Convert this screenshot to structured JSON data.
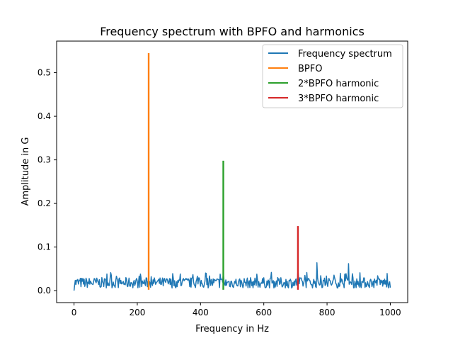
{
  "chart_data": {
    "type": "line",
    "title": "Frequency spectrum with BPFO and harmonics",
    "xlabel": "Frequency in Hz",
    "ylabel": "Amplitude in G",
    "xlim": [
      -55,
      1055
    ],
    "ylim": [
      -0.0275,
      0.5725
    ],
    "xticks": [
      0,
      200,
      400,
      600,
      800,
      1000
    ],
    "xtick_labels": [
      "0",
      "200",
      "400",
      "600",
      "800",
      "1000"
    ],
    "yticks": [
      0.0,
      0.1,
      0.2,
      0.3,
      0.4,
      0.5
    ],
    "ytick_labels": [
      "0.0",
      "0.1",
      "0.2",
      "0.3",
      "0.4",
      "0.5"
    ],
    "grid": false,
    "legend_position": "upper-right",
    "series": [
      {
        "name": "Frequency spectrum",
        "color": "#1f77b4",
        "kind": "noise-spectrum",
        "x_range": [
          0,
          1000
        ],
        "baseline": 0.018,
        "noise_amplitude": 0.012,
        "peaks": [
          {
            "x": 15,
            "y": 0.065
          },
          {
            "x": 118,
            "y": 0.035
          },
          {
            "x": 177,
            "y": 0.06
          },
          {
            "x": 235,
            "y": 0.04
          },
          {
            "x": 295,
            "y": 0.049
          },
          {
            "x": 390,
            "y": 0.033
          },
          {
            "x": 472,
            "y": 0.04
          },
          {
            "x": 535,
            "y": 0.038
          },
          {
            "x": 708,
            "y": 0.05
          },
          {
            "x": 768,
            "y": 0.064
          },
          {
            "x": 868,
            "y": 0.062
          },
          {
            "x": 960,
            "y": 0.034
          }
        ]
      },
      {
        "name": "BPFO",
        "color": "#ff7f0e",
        "kind": "spike",
        "x": 236,
        "y_range": [
          0.002,
          0.545
        ]
      },
      {
        "name": "2*BPFO harmonic",
        "color": "#2ca02c",
        "kind": "spike",
        "x": 472,
        "y_range": [
          0.002,
          0.298
        ]
      },
      {
        "name": "3*BPFO harmonic",
        "color": "#d62728",
        "kind": "spike",
        "x": 708,
        "y_range": [
          0.002,
          0.148
        ]
      }
    ]
  }
}
